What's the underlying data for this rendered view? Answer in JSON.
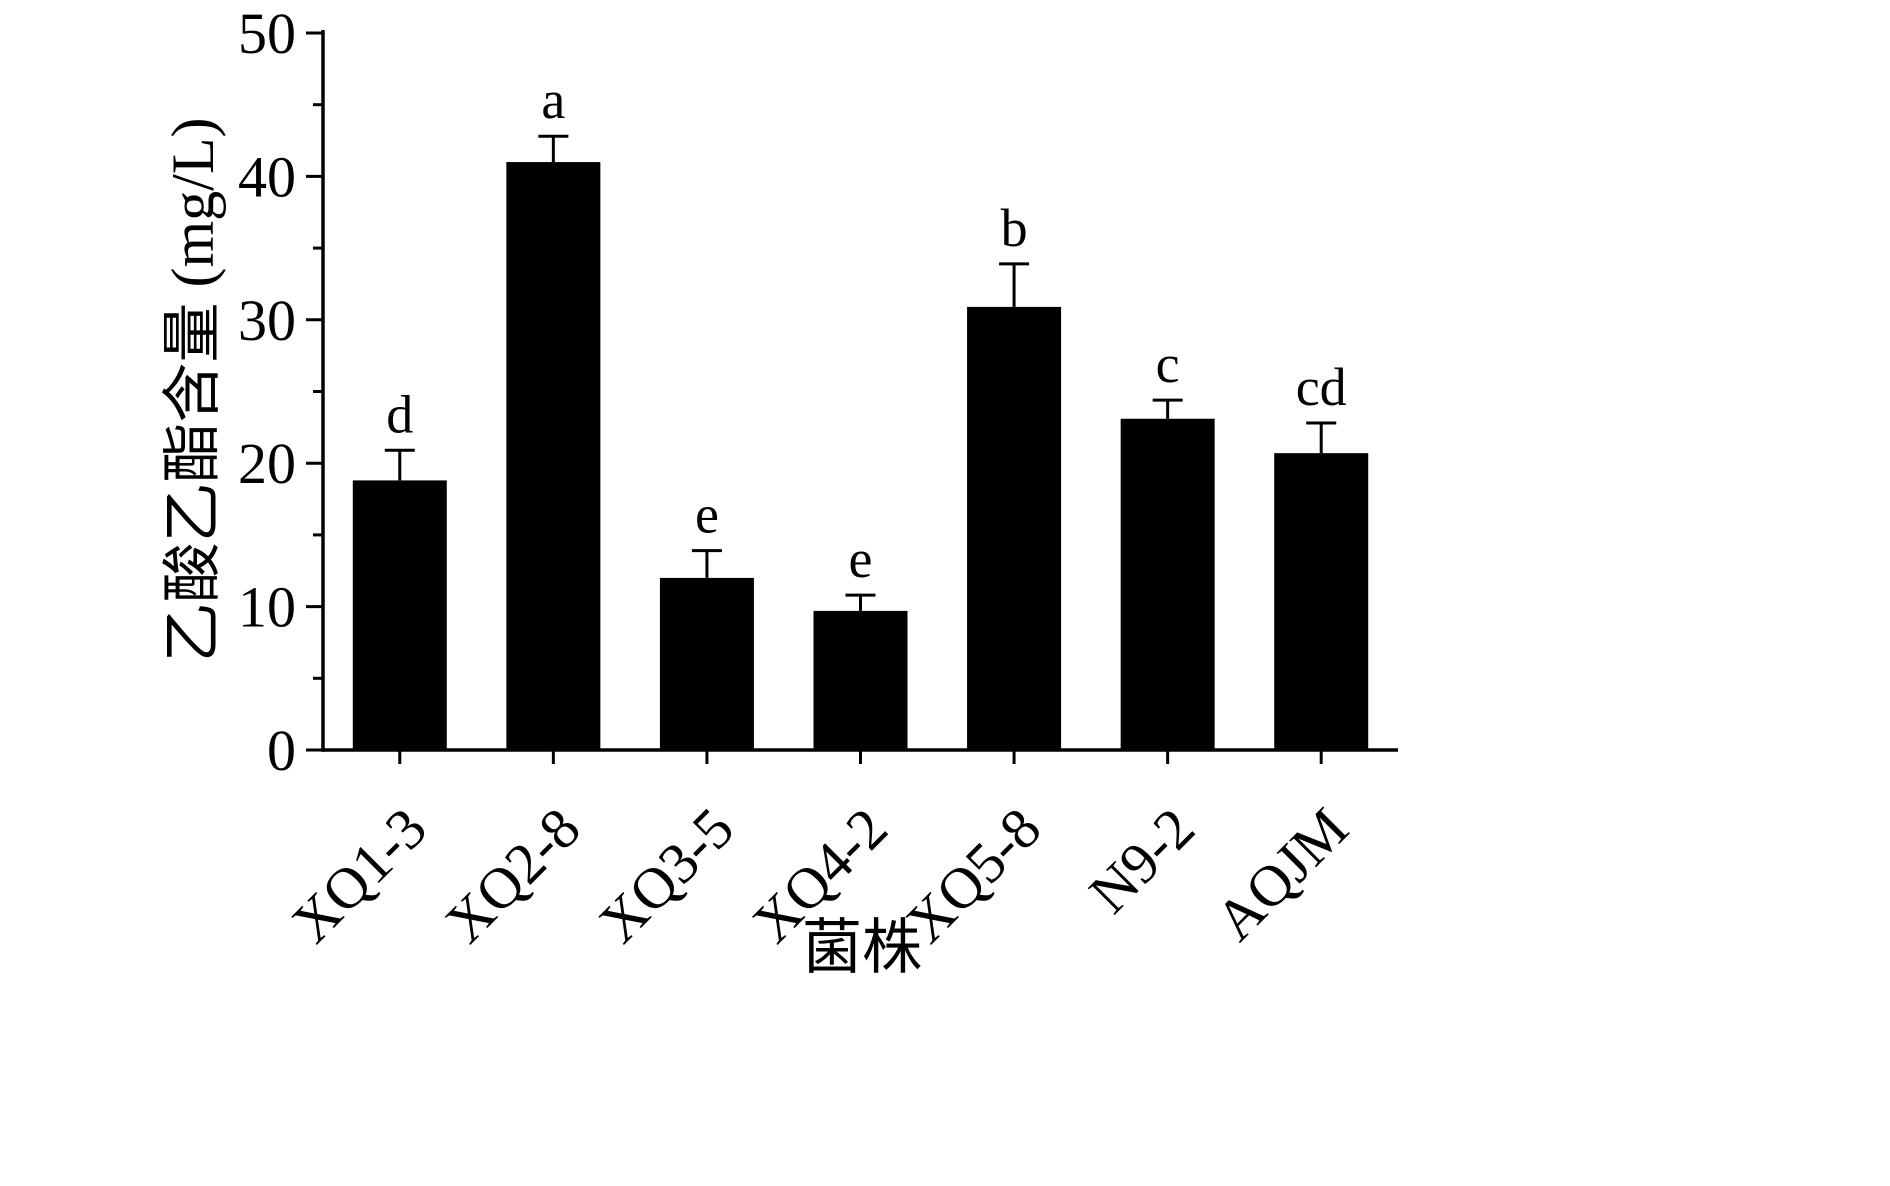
{
  "chart_data": {
    "type": "bar",
    "title": "",
    "xlabel": "菌株",
    "ylabel": "乙酸乙酯含量 (mg/L)",
    "categories": [
      "XQ1-3",
      "XQ2-8",
      "XQ3-5",
      "XQ4-2",
      "XQ5-8",
      "N9-2",
      "AQJM"
    ],
    "values": [
      18.8,
      41.0,
      12.0,
      9.7,
      30.9,
      23.1,
      20.7
    ],
    "errors": [
      2.1,
      1.8,
      1.9,
      1.1,
      3.0,
      1.3,
      2.1
    ],
    "sig_letters": [
      "d",
      "a",
      "e",
      "e",
      "b",
      "c",
      "cd"
    ],
    "ylim": [
      0,
      50
    ],
    "yticks": [
      0,
      10,
      20,
      30,
      40,
      50
    ],
    "minor_tick_interval": 5,
    "bar_color": "#000000",
    "axis_color": "#000000",
    "background_color": "#ffffff",
    "grid": false,
    "legend": false,
    "x_tick_label_rotation_deg": 45
  }
}
